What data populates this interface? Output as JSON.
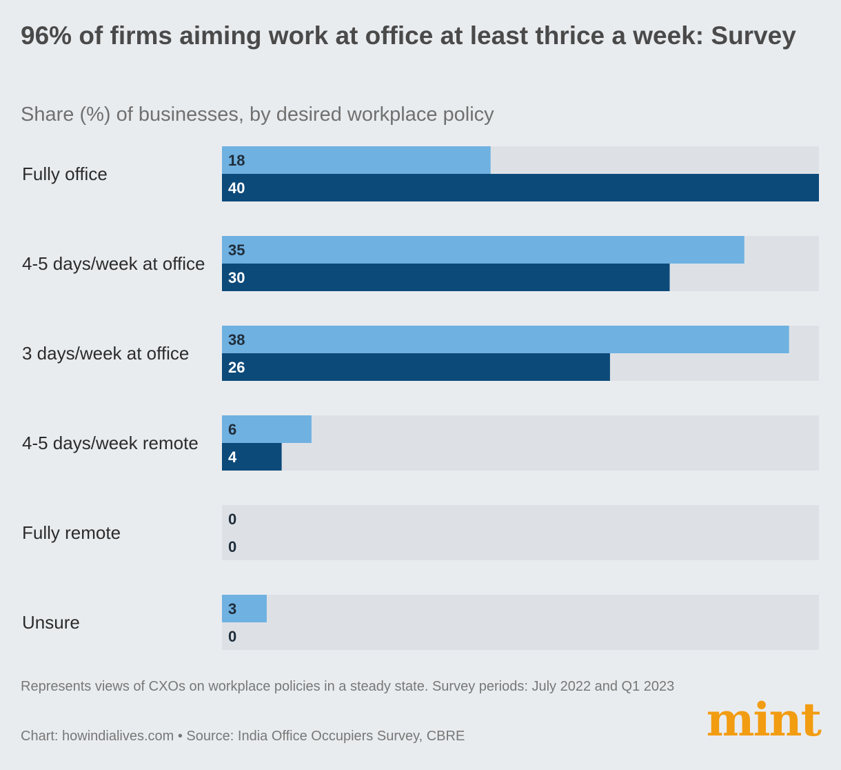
{
  "title": "96% of firms aiming work at office at least thrice a week: Survey",
  "subtitle": "Share (%) of businesses, by desired workplace policy",
  "note": "Represents views of CXOs on workplace policies in a steady state. Survey periods: July 2022 and Q1 2023",
  "credit": "Chart: howindialives.com • Source: India Office Occupiers Survey, CBRE",
  "logo": "mint",
  "colors": {
    "series_light": "#6fb1e1",
    "series_dark": "#0c4a7a",
    "track": "#dde1e6",
    "background": "#e9ecef",
    "logo": "#f29c12"
  },
  "chart_data": {
    "type": "bar",
    "orientation": "horizontal",
    "categories": [
      "Fully office",
      "4-5 days/week at office",
      "3 days/week at office",
      "4-5 days/week remote",
      "Fully remote",
      "Unsure"
    ],
    "series": [
      {
        "values": [
          18,
          35,
          38,
          6,
          0,
          3
        ]
      },
      {
        "values": [
          40,
          30,
          26,
          4,
          0,
          0
        ]
      }
    ],
    "xlim": [
      0,
      40
    ],
    "grid": false,
    "legend": "none"
  }
}
